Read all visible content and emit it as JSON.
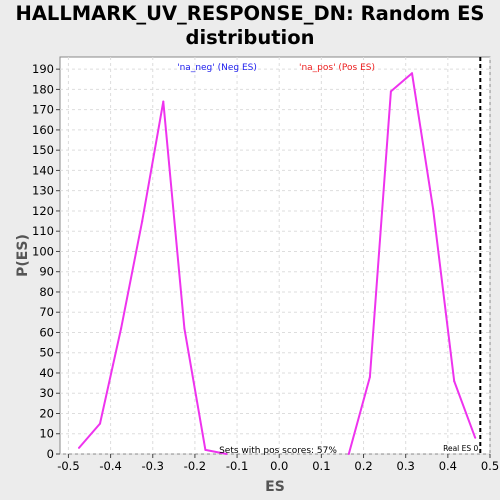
{
  "chart_data": {
    "type": "line",
    "title": "HALLMARK_UV_RESPONSE_DN: Random ES distribution",
    "xlabel": "ES",
    "ylabel": "P(ES)",
    "xlim": [
      -0.52,
      0.5
    ],
    "ylim": [
      0,
      196
    ],
    "xticks": [
      "-0.5",
      "-0.4",
      "-0.3",
      "-0.2",
      "-0.1",
      "0.0",
      "0.1",
      "0.2",
      "0.3",
      "0.4",
      "0.5"
    ],
    "yticks": [
      "0",
      "10",
      "20",
      "30",
      "40",
      "50",
      "60",
      "70",
      "80",
      "90",
      "100",
      "110",
      "120",
      "130",
      "140",
      "150",
      "160",
      "170",
      "180",
      "190"
    ],
    "grid": true,
    "legend": {
      "neg": "'na_neg' (Neg ES)",
      "pos": "'na_pos' (Pos ES)",
      "neg_color": "#2020ee",
      "pos_color": "#ee2020"
    },
    "series": [
      {
        "color": "#ee33ee",
        "x": [
          -0.475,
          -0.425,
          -0.375,
          -0.325,
          -0.275,
          -0.225,
          -0.175,
          -0.125
        ],
        "y": [
          3,
          15,
          62,
          115,
          174,
          62,
          2,
          0
        ]
      },
      {
        "color": "#ee33ee",
        "x": [
          0.165,
          0.215,
          0.265,
          0.315,
          0.365,
          0.415,
          0.465
        ],
        "y": [
          0,
          38,
          179,
          188,
          121,
          36,
          8
        ]
      }
    ],
    "real_es": {
      "x": 0.477,
      "label": "Real ES 0",
      "color": "#000000"
    },
    "annotation": "Sets with pos scores: 57%"
  }
}
